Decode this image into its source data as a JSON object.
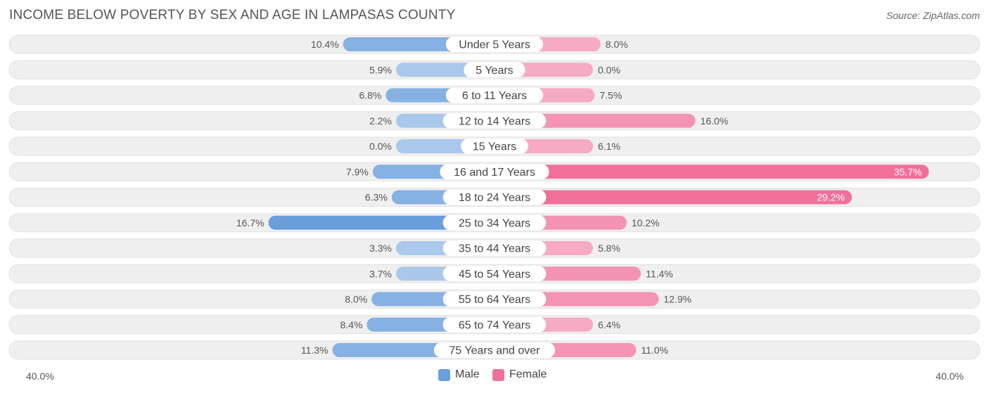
{
  "header": {
    "title": "INCOME BELOW POVERTY BY SEX AND AGE IN LAMPASAS COUNTY",
    "source": "Source: ZipAtlas.com"
  },
  "colors": {
    "male": "#6a9fdc",
    "male_light": "#a9c8ec",
    "female": "#f0709a",
    "female_light": "#f7aac4",
    "track": "#eeeeee"
  },
  "chart_data": {
    "type": "bar",
    "orientation": "horizontal-diverging",
    "title": "INCOME BELOW POVERTY BY SEX AND AGE IN LAMPASAS COUNTY",
    "categories": [
      "Under 5 Years",
      "5 Years",
      "6 to 11 Years",
      "12 to 14 Years",
      "15 Years",
      "16 and 17 Years",
      "18 to 24 Years",
      "25 to 34 Years",
      "35 to 44 Years",
      "45 to 54 Years",
      "55 to 64 Years",
      "65 to 74 Years",
      "75 Years and over"
    ],
    "series": [
      {
        "name": "Male",
        "values": [
          10.4,
          5.9,
          6.8,
          2.2,
          0.0,
          7.9,
          6.3,
          16.7,
          3.3,
          3.7,
          8.0,
          8.4,
          11.3
        ],
        "labels": [
          "10.4%",
          "5.9%",
          "6.8%",
          "2.2%",
          "0.0%",
          "7.9%",
          "6.3%",
          "16.7%",
          "3.3%",
          "3.7%",
          "8.0%",
          "8.4%",
          "11.3%"
        ]
      },
      {
        "name": "Female",
        "values": [
          8.0,
          0.0,
          7.5,
          16.0,
          6.1,
          35.7,
          29.2,
          10.2,
          5.8,
          11.4,
          12.9,
          6.4,
          11.0
        ],
        "labels": [
          "8.0%",
          "0.0%",
          "7.5%",
          "16.0%",
          "6.1%",
          "35.7%",
          "29.2%",
          "10.2%",
          "5.8%",
          "11.4%",
          "12.9%",
          "6.4%",
          "11.0%"
        ]
      }
    ],
    "xlim": [
      -40,
      40
    ],
    "axis_labels": {
      "left": "40.0%",
      "right": "40.0%"
    },
    "legend": {
      "position": "bottom-center",
      "entries": [
        "Male",
        "Female"
      ]
    }
  }
}
